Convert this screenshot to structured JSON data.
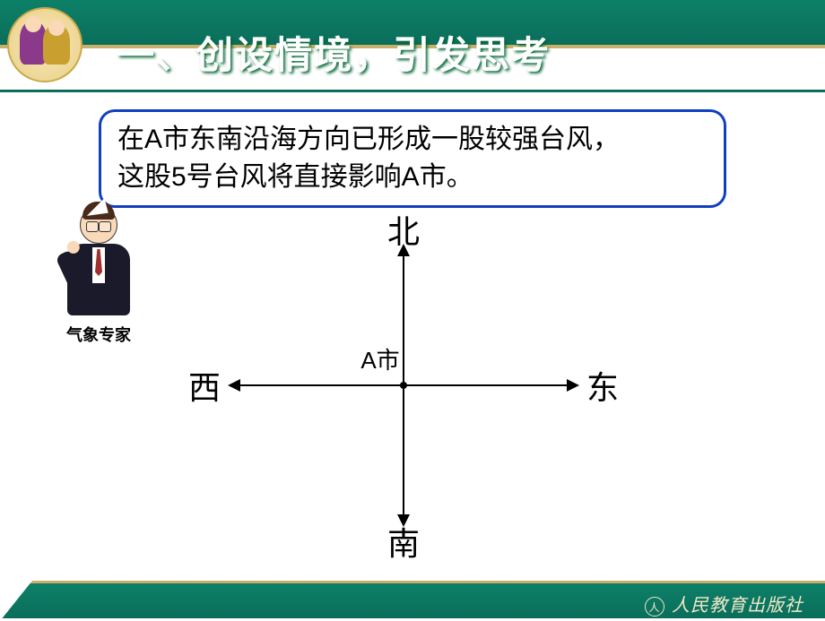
{
  "header": {
    "title": "一、创设情境，引发思考",
    "title_color": "#ffffff",
    "bar_color": "#0a6e5b",
    "accent_line_color": "#c9b068"
  },
  "speech": {
    "line1": "在A市东南沿海方向已形成一股较强台风，",
    "line2": "这股5号台风将直接影响A市。",
    "border_color": "#1040c0",
    "fontsize": 30
  },
  "expert": {
    "label": "气象专家",
    "label_fontsize": 18
  },
  "compass": {
    "type": "diagram",
    "north": "北",
    "south": "南",
    "east": "东",
    "west": "西",
    "center_label": "A市",
    "label_fontsize": 36,
    "center_label_fontsize": 26,
    "line_color": "#000000",
    "background_color": "#ffffff"
  },
  "footer": {
    "publisher": "人民教育出版社",
    "text_color": "#f0e8c8",
    "bar_color": "#0a6e5b"
  }
}
